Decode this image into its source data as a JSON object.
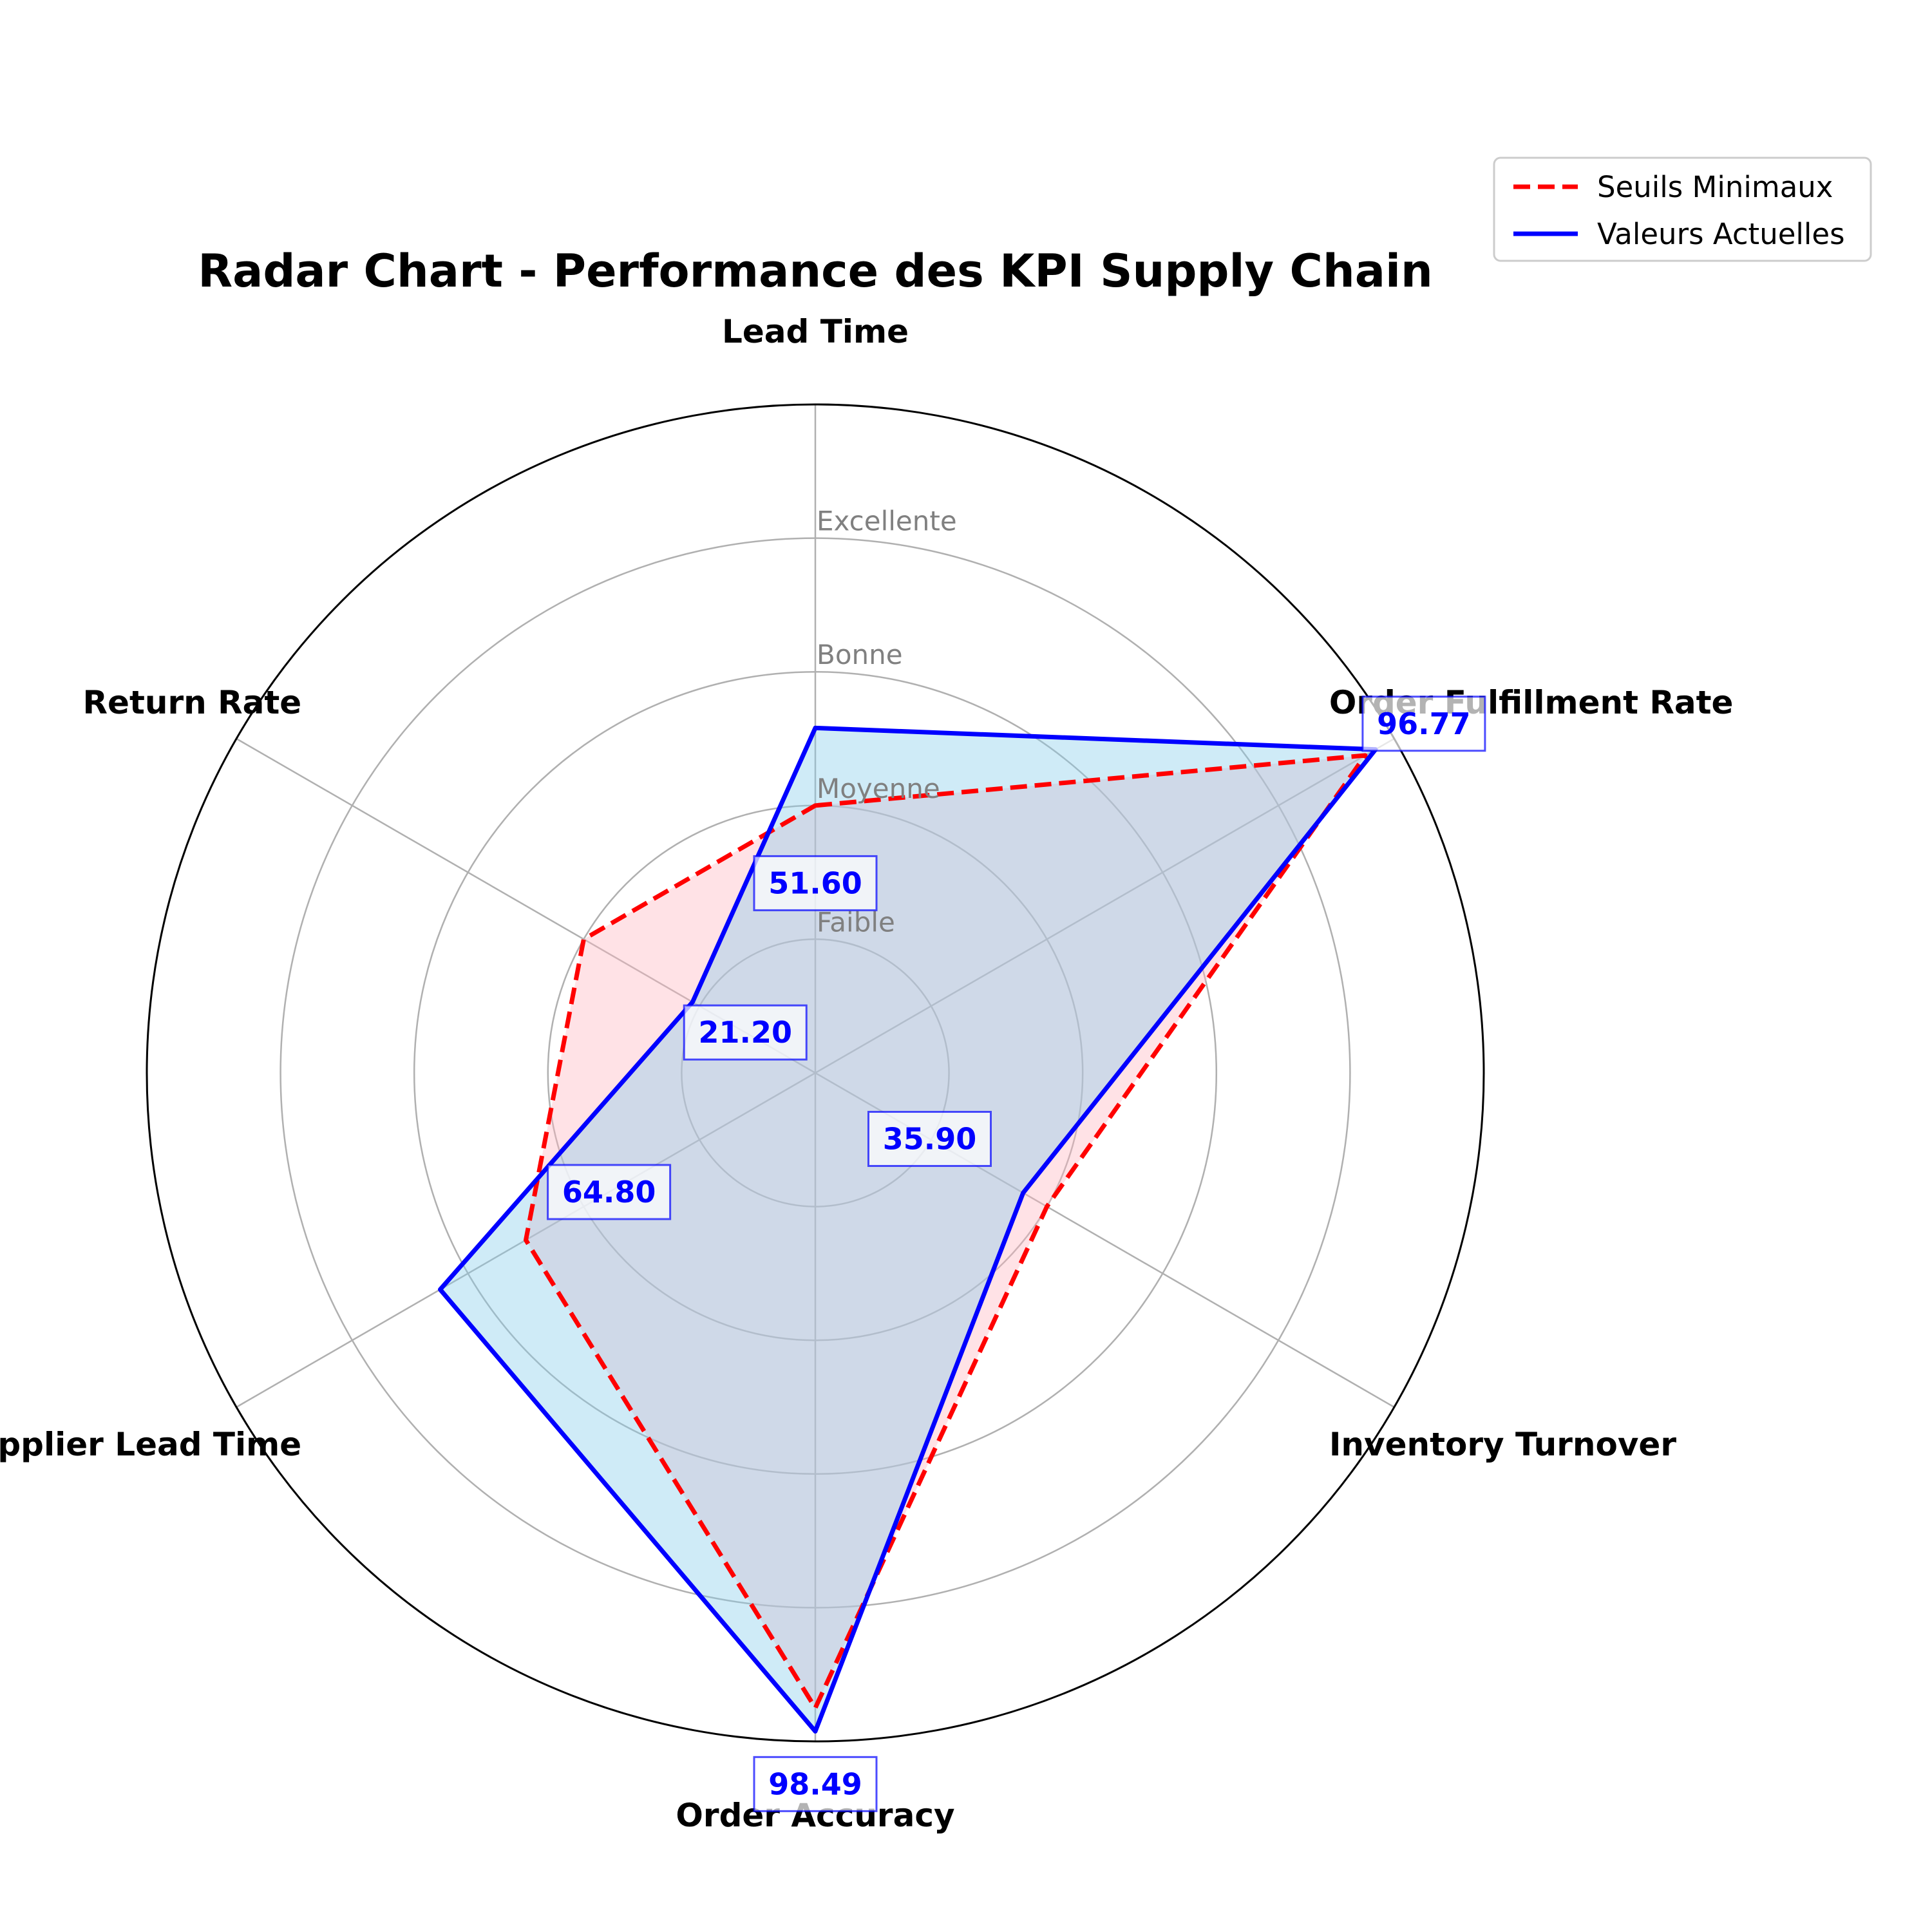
{
  "chart_data": {
    "type": "radar",
    "title": "Radar Chart - Performance des KPI Supply Chain",
    "categories": [
      "Lead Time",
      "Order Fulfillment Rate",
      "Inventory Turnover",
      "Order Accuracy",
      "Supplier Lead Time",
      "Return Rate"
    ],
    "rlim": [
      0,
      100
    ],
    "rings": [
      {
        "label": "Faible",
        "value": 20
      },
      {
        "label": "Moyenne",
        "value": 40
      },
      {
        "label": "Bonne",
        "value": 60
      },
      {
        "label": "Excellente",
        "value": 80
      }
    ],
    "series": [
      {
        "name": "Seuils Minimaux",
        "line_style": "dashed",
        "color": "#ff0000",
        "fill_color": "#ffb6c1",
        "values": [
          40,
          95,
          40,
          95,
          50,
          40
        ]
      },
      {
        "name": "Valeurs Actuelles",
        "line_style": "solid",
        "color": "#0000ff",
        "fill_color": "#87ceeb",
        "values": [
          51.6,
          96.77,
          35.9,
          98.49,
          64.8,
          21.2
        ]
      }
    ],
    "value_labels": [
      "51.60",
      "96.77",
      "35.90",
      "98.49",
      "64.80",
      "21.20"
    ],
    "grid": true,
    "legend_position": "top-right"
  }
}
